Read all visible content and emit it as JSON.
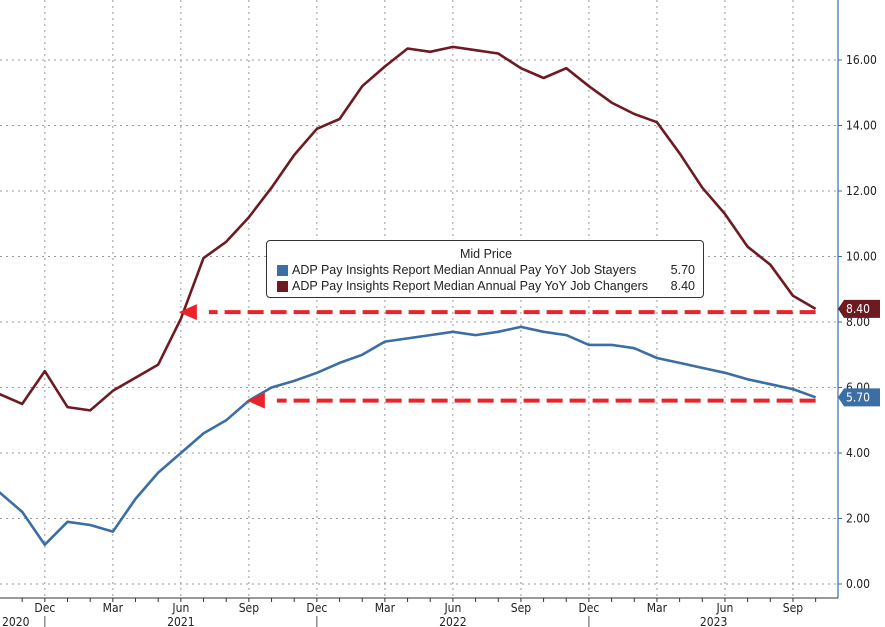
{
  "chart_data": {
    "type": "line",
    "title": "",
    "xlabel": "",
    "ylabel": "",
    "ylim": [
      0,
      17.5
    ],
    "yticks": [
      "0.00",
      "2.00",
      "4.00",
      "6.00",
      "8.00",
      "10.00",
      "12.00",
      "14.00",
      "16.00"
    ],
    "y_axis_side": "right",
    "grid": true,
    "legend_title": "Mid Price",
    "legend_placement": "center",
    "x_month_ticks": [
      "Dec",
      "Mar",
      "Jun",
      "Sep",
      "Dec",
      "Mar",
      "Jun",
      "Sep",
      "Dec",
      "Mar",
      "Jun",
      "Sep"
    ],
    "x_year_labels": [
      "2020",
      "2021",
      "2022",
      "2023"
    ],
    "x": [
      "2020-10",
      "2020-11",
      "2020-12",
      "2021-01",
      "2021-02",
      "2021-03",
      "2021-04",
      "2021-05",
      "2021-06",
      "2021-07",
      "2021-08",
      "2021-09",
      "2021-10",
      "2021-11",
      "2021-12",
      "2022-01",
      "2022-02",
      "2022-03",
      "2022-04",
      "2022-05",
      "2022-06",
      "2022-07",
      "2022-08",
      "2022-09",
      "2022-10",
      "2022-11",
      "2022-12",
      "2023-01",
      "2023-02",
      "2023-03",
      "2023-04",
      "2023-05",
      "2023-06",
      "2023-07",
      "2023-08",
      "2023-09",
      "2023-10"
    ],
    "series": [
      {
        "name": "ADP Pay Insights Report Median Annual Pay YoY Job Stayers",
        "last": "5.70",
        "color": "#3a6ea5",
        "values": [
          2.8,
          2.2,
          1.2,
          1.9,
          1.8,
          1.6,
          2.6,
          3.4,
          4.0,
          4.6,
          5.0,
          5.6,
          6.0,
          6.2,
          6.45,
          6.75,
          7.0,
          7.4,
          7.5,
          7.6,
          7.7,
          7.6,
          7.7,
          7.85,
          7.7,
          7.6,
          7.3,
          7.3,
          7.2,
          6.9,
          6.75,
          6.6,
          6.45,
          6.25,
          6.1,
          5.95,
          5.7
        ]
      },
      {
        "name": "ADP Pay Insights Report Median Annual Pay YoY Job Changers",
        "last": "8.40",
        "color": "#6e1a21",
        "values": [
          5.8,
          5.5,
          6.5,
          5.4,
          5.3,
          5.9,
          6.3,
          6.7,
          8.1,
          9.95,
          10.45,
          11.2,
          12.1,
          13.1,
          13.9,
          14.2,
          15.2,
          15.8,
          16.35,
          16.25,
          16.4,
          16.3,
          16.2,
          15.75,
          15.45,
          15.75,
          15.2,
          14.7,
          14.35,
          14.1,
          13.15,
          12.1,
          11.3,
          10.3,
          9.75,
          8.8,
          8.4
        ]
      }
    ],
    "annotations": [
      {
        "type": "dashed-arrow",
        "color": "#e8242a",
        "level": 8.3,
        "from": "2023-10",
        "to": "2021-06"
      },
      {
        "type": "dashed-arrow",
        "color": "#e8242a",
        "level": 5.6,
        "from": "2023-10",
        "to": "2021-09"
      }
    ]
  }
}
